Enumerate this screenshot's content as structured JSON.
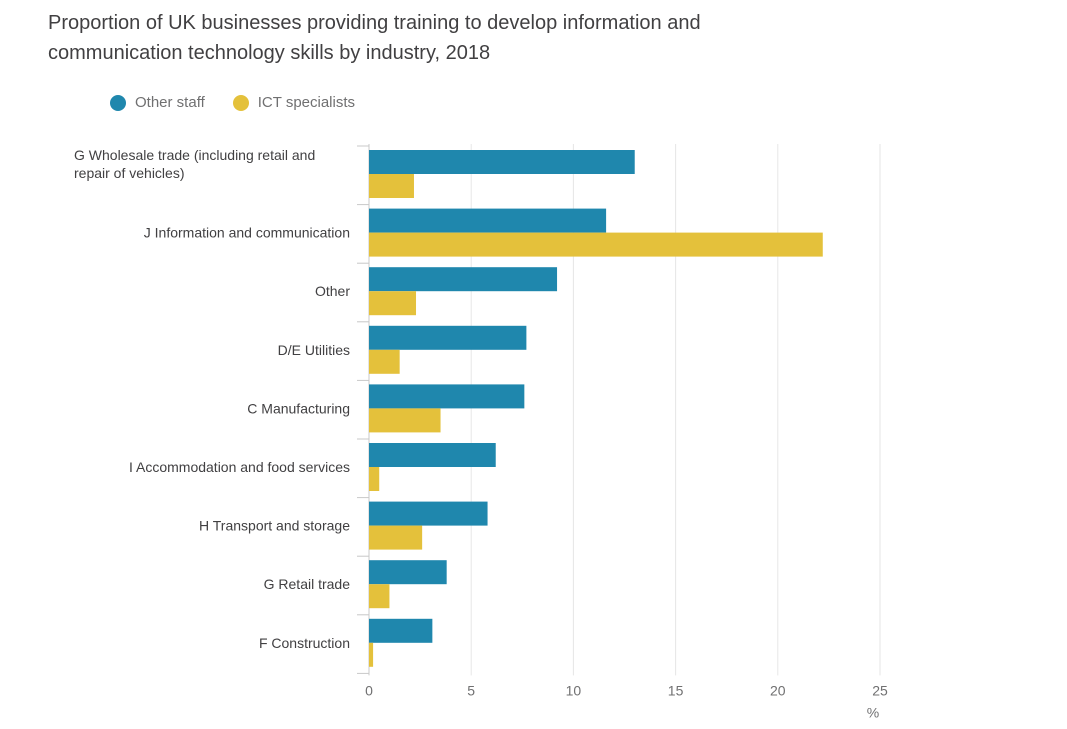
{
  "chart_data": {
    "type": "bar",
    "orientation": "horizontal",
    "title": "Proportion of UK businesses providing training to develop information and communication technology skills by industry, 2018",
    "xlabel": "%",
    "xlim": [
      0,
      25
    ],
    "xticks": [
      0,
      5,
      10,
      15,
      20,
      25
    ],
    "grid": true,
    "legend_position": "top-left",
    "categories": [
      "G Wholesale trade (including retail and repair of vehicles)",
      "J Information and communication",
      "Other",
      "D/E Utilities",
      "C Manufacturing",
      "I Accommodation and food services",
      "H Transport and storage",
      "G Retail trade",
      "F Construction"
    ],
    "category_lines": [
      [
        "G Wholesale trade (including retail and",
        "repair of vehicles)"
      ],
      [
        "J Information and communication"
      ],
      [
        "Other"
      ],
      [
        "D/E Utilities"
      ],
      [
        "C Manufacturing"
      ],
      [
        "I Accommodation and food services"
      ],
      [
        "H Transport and storage"
      ],
      [
        "G Retail trade"
      ],
      [
        "F Construction"
      ]
    ],
    "series": [
      {
        "name": "Other staff",
        "color": "#206095",
        "values": [
          13.0,
          11.6,
          9.2,
          7.7,
          7.6,
          6.2,
          5.8,
          3.8,
          3.1
        ]
      },
      {
        "name": "ICT specialists",
        "color": "#e4c13b",
        "values": [
          2.2,
          22.2,
          2.3,
          1.5,
          3.5,
          0.5,
          2.6,
          1.0,
          0.2
        ]
      }
    ]
  },
  "legend": {
    "other_staff": "Other staff",
    "ict_specialists": "ICT specialists"
  },
  "colors": {
    "other_staff": "#1f87ad",
    "ict_specialists": "#e4c13b",
    "grid": "#e6e6e6",
    "axis": "#c8c8c8"
  }
}
